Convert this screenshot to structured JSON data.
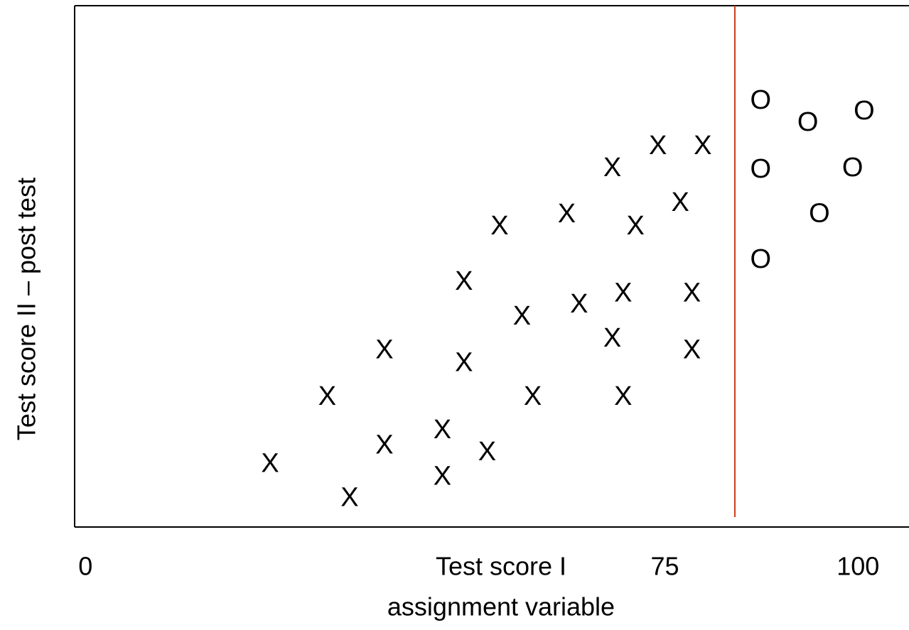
{
  "chart_data": {
    "type": "scatter",
    "xlabel": [
      "Test score I",
      "assignment variable"
    ],
    "ylabel": "Test score II – post test",
    "xlim": [
      -1.4,
      106.6
    ],
    "xticks": [
      0,
      75,
      100
    ],
    "ylim": [
      0,
      100
    ],
    "series": [
      {
        "marker": "X",
        "color": "#000000",
        "x": [
          23.9,
          34.2,
          31.3,
          38.7,
          38.7,
          46.2,
          46.2,
          52.0,
          49.0,
          49.0,
          53.6,
          56.5,
          57.9,
          62.3,
          63.9,
          68.2,
          69.6,
          68.2,
          69.6,
          71.2,
          74.1,
          77.0,
          79.9,
          78.5,
          78.5
        ],
        "values": [
          11.9,
          5.4,
          24.8,
          15.5,
          33.7,
          18.4,
          9.5,
          14.2,
          46.9,
          31.3,
          57.5,
          40.2,
          24.8,
          59.8,
          42.5,
          68.7,
          44.6,
          36.0,
          24.8,
          57.5,
          72.9,
          62.0,
          72.9,
          44.6,
          33.7
        ]
      },
      {
        "marker": "O",
        "color": "#000000",
        "x": [
          87.4,
          93.5,
          100.8,
          87.4,
          99.3,
          95.0,
          87.4
        ],
        "values": [
          81.6,
          77.4,
          79.6,
          68.4,
          68.7,
          59.9,
          51.1
        ]
      }
    ]
  }
}
